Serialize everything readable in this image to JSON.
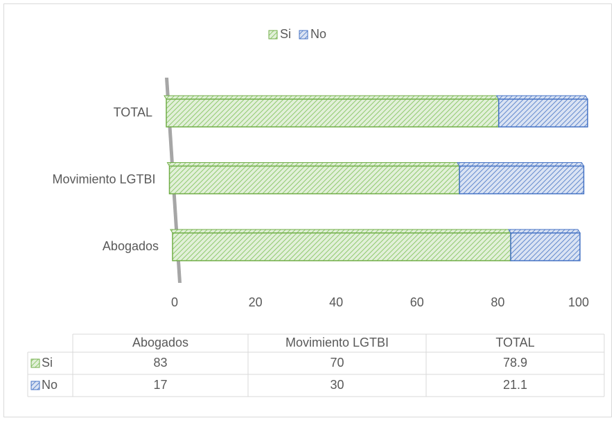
{
  "chart_data": {
    "type": "bar",
    "orientation": "horizontal",
    "stacked": true,
    "categories": [
      "Abogados",
      "Movimiento LGTBI",
      "TOTAL"
    ],
    "series": [
      {
        "name": "Si",
        "color": "#70ad47",
        "values": [
          83,
          70,
          78.9
        ]
      },
      {
        "name": "No",
        "color": "#4472c4",
        "values": [
          17,
          30,
          21.1
        ]
      }
    ],
    "xlim": [
      0,
      100
    ],
    "xticks": [
      0,
      20,
      40,
      60,
      80,
      100
    ],
    "legend": "top",
    "grid": false,
    "data_table": true
  }
}
